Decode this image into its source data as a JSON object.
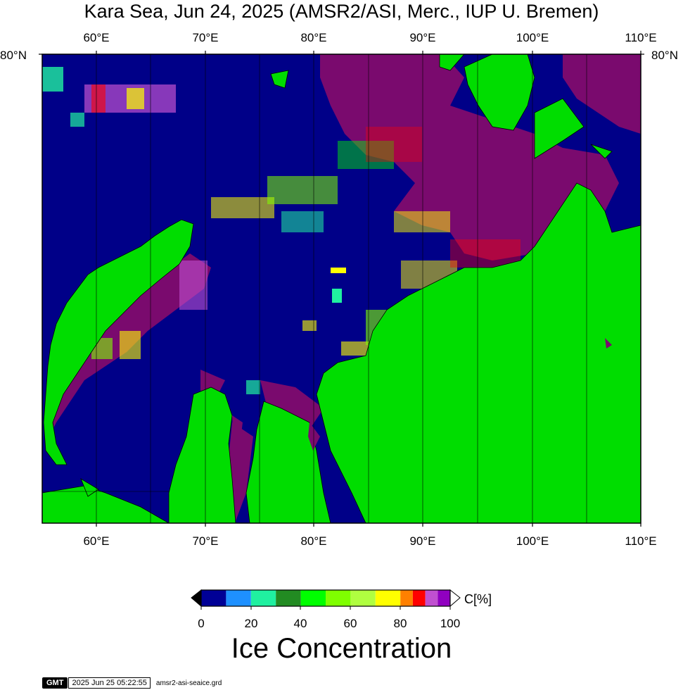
{
  "title": "Kara Sea, Jun 24, 2025 (AMSR2/ASI, Merc., IUP U. Bremen)",
  "map": {
    "lon_range": [
      55,
      110
    ],
    "lat_top": 80,
    "lon_ticks": [
      "60°E",
      "70°E",
      "80°E",
      "90°E",
      "100°E",
      "110°E"
    ],
    "lat_tick_left": "80°N",
    "lat_tick_right": "80°N",
    "grid": true,
    "colors": {
      "ocean": "#000088",
      "land": "#00dd00",
      "high_ice": "#7a0a6e",
      "frame": "#000000"
    }
  },
  "colorbar": {
    "labels": [
      "0",
      "20",
      "40",
      "60",
      "80",
      "100"
    ],
    "unit": "C[%]",
    "title": "Ice Concentration",
    "bins": [
      {
        "range": "0-10",
        "color": "#000096"
      },
      {
        "range": "10-20",
        "color": "#1e90ff"
      },
      {
        "range": "20-30",
        "color": "#20f0a0"
      },
      {
        "range": "30-40",
        "color": "#228b22"
      },
      {
        "range": "40-50",
        "color": "#00ff00"
      },
      {
        "range": "50-60",
        "color": "#7fff00"
      },
      {
        "range": "60-70",
        "color": "#b0ff40"
      },
      {
        "range": "70-80",
        "color": "#ffff00"
      },
      {
        "range": "80-85",
        "color": "#ff8000"
      },
      {
        "range": "85-90",
        "color": "#ff0000"
      },
      {
        "range": "90-95",
        "color": "#c050d0"
      },
      {
        "range": "95-100",
        "color": "#9000c0"
      }
    ]
  },
  "footer": {
    "logo": "GMT",
    "timestamp": "2025 Jun 25 05:22:55",
    "file": "amsr2-asi-seaice.grd"
  }
}
